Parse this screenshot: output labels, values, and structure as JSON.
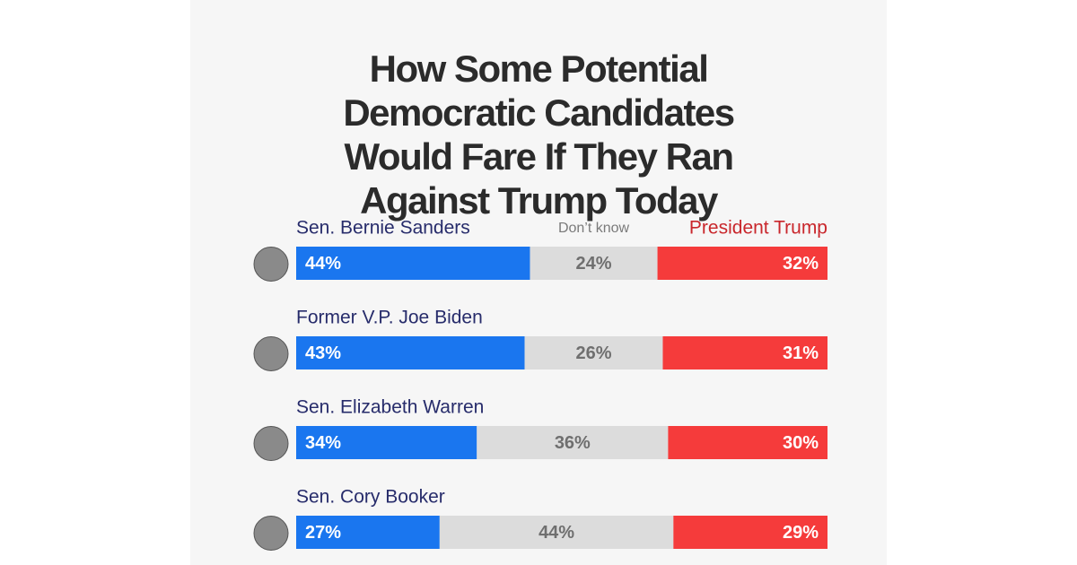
{
  "chart_data": {
    "type": "stacked-bar",
    "title": "How Some Potential Democratic Candidates Would Fare If They Ran Against Trump Today",
    "categories": [
      "Sen. Bernie Sanders",
      "Former V.P. Joe Biden",
      "Sen. Elizabeth Warren",
      "Sen. Cory Booker"
    ],
    "xlim": [
      0,
      100
    ],
    "series": [
      {
        "color": "#1a76ef",
        "values": [
          44,
          43,
          34,
          27
        ],
        "value_labels": [
          "44%",
          "43%",
          "34%",
          "27%"
        ]
      },
      {
        "name": "Don’t know",
        "color": "#dcdcdc",
        "values": [
          24,
          26,
          36,
          44
        ],
        "value_labels": [
          "24%",
          "26%",
          "36%",
          "44%"
        ]
      },
      {
        "name": "President Trump",
        "color": "#f53b3b",
        "values": [
          32,
          31,
          30,
          29
        ],
        "value_labels": [
          "32%",
          "31%",
          "30%",
          "29%"
        ]
      }
    ]
  }
}
